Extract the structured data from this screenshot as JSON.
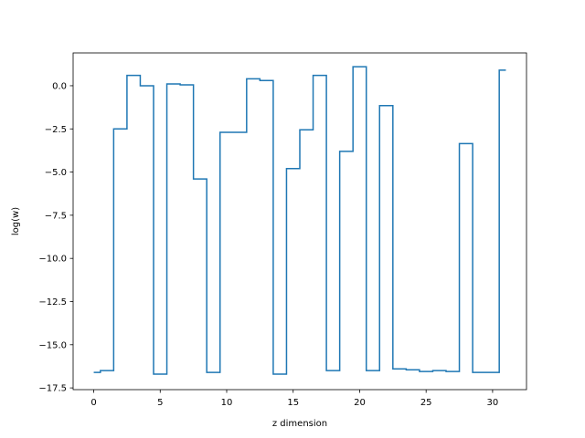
{
  "chart_data": {
    "type": "line",
    "drawstyle": "steps-mid",
    "title": "",
    "xlabel": "z dimension",
    "ylabel": "log(w)",
    "xlim": [
      -1.55,
      32.55
    ],
    "ylim": [
      -17.6,
      1.9
    ],
    "xticks": [
      0,
      5,
      10,
      15,
      20,
      25,
      30
    ],
    "xtick_labels": [
      "0",
      "5",
      "10",
      "15",
      "20",
      "25",
      "30"
    ],
    "yticks": [
      0.0,
      -2.5,
      -5.0,
      -7.5,
      -10.0,
      -12.5,
      -15.0,
      -17.5
    ],
    "ytick_labels": [
      "0.0",
      "−2.5",
      "−5.0",
      "−7.5",
      "−10.0",
      "−12.5",
      "−15.0",
      "−17.5"
    ],
    "grid": false,
    "series": [
      {
        "color": "#1f77b4",
        "x": [
          0,
          1,
          2,
          3,
          4,
          5,
          6,
          7,
          8,
          9,
          10,
          11,
          12,
          13,
          14,
          15,
          16,
          17,
          18,
          19,
          20,
          21,
          22,
          23,
          24,
          25,
          26,
          27,
          28,
          29,
          30,
          31
        ],
        "y": [
          -16.6,
          -16.5,
          -2.5,
          0.6,
          0.0,
          -16.7,
          0.1,
          0.05,
          -5.4,
          -16.6,
          -2.7,
          -2.7,
          0.4,
          0.3,
          -16.7,
          -4.8,
          -2.55,
          0.6,
          -16.5,
          -3.8,
          1.1,
          -16.5,
          -1.15,
          -16.4,
          -16.45,
          -16.55,
          -16.5,
          -16.55,
          -3.35,
          -16.6,
          -16.6,
          0.9
        ]
      }
    ]
  }
}
